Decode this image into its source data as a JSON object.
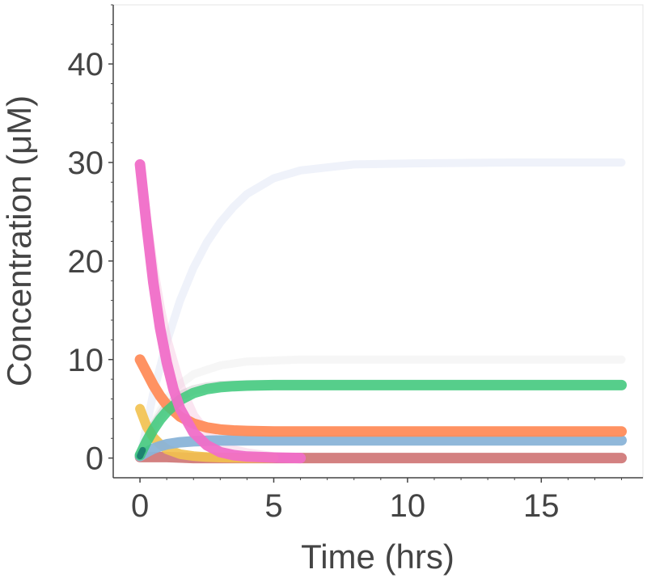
{
  "chart_data": {
    "type": "line",
    "xlabel": "Time (hrs)",
    "ylabel": "Concentration (μM)",
    "xlim": [
      -1,
      18.8
    ],
    "ylim": [
      -2,
      46
    ],
    "x_ticks": [
      0,
      5,
      10,
      15
    ],
    "y_ticks": [
      0,
      10,
      20,
      30,
      40
    ],
    "grid": false,
    "series": [
      {
        "color": "#edf1fa",
        "width": 10,
        "opacity": 0.9,
        "x": [
          0,
          0.5,
          1,
          1.5,
          2,
          2.5,
          3,
          3.5,
          4,
          5,
          6,
          8,
          10,
          14,
          18
        ],
        "y": [
          0,
          6.6,
          11.8,
          16.0,
          19.3,
          21.9,
          23.9,
          25.5,
          26.8,
          28.4,
          29.2,
          29.8,
          29.9,
          30.0,
          30.0
        ]
      },
      {
        "color": "#f5f5f5",
        "width": 10,
        "opacity": 0.9,
        "x": [
          0,
          0.5,
          1,
          1.5,
          2,
          3,
          4,
          6,
          10,
          18
        ],
        "y": [
          0,
          3.5,
          6.0,
          7.5,
          8.5,
          9.4,
          9.8,
          10.0,
          10.0,
          10.0
        ]
      },
      {
        "color": "#f7c6e0",
        "width": 12,
        "opacity": 0.45,
        "x": [
          0,
          0.25,
          0.5,
          0.75,
          1,
          1.5,
          2,
          2.5,
          3,
          3.5,
          4,
          5
        ],
        "y": [
          29.5,
          24.0,
          19.2,
          15.2,
          12.0,
          7.3,
          4.3,
          2.5,
          1.5,
          0.8,
          0.5,
          0.1
        ]
      },
      {
        "color": "#b9b9b9",
        "width": 12,
        "opacity": 0.35,
        "x": [
          0,
          0.5,
          1,
          1.5,
          2,
          2.5,
          3,
          4,
          5,
          8,
          12,
          18
        ],
        "y": [
          0.3,
          3.2,
          5.2,
          6.3,
          6.9,
          7.2,
          7.35,
          7.4,
          7.4,
          7.4,
          7.4,
          7.4
        ]
      },
      {
        "color": "#d17a7a",
        "width": 13,
        "opacity": 0.95,
        "x": [
          0,
          0.5,
          1,
          1.5,
          2,
          2.5,
          3,
          4,
          5,
          8,
          12,
          18
        ],
        "y": [
          0.1,
          0.1,
          0.1,
          0.05,
          0.0,
          0.0,
          0.0,
          0.0,
          0.0,
          0.0,
          0.0,
          0.0
        ]
      },
      {
        "color": "#f2c14e",
        "width": 12,
        "opacity": 0.9,
        "x": [
          0,
          0.25,
          0.5,
          0.75,
          1,
          1.5,
          2,
          2.5,
          3,
          4,
          5
        ],
        "y": [
          5.0,
          3.2,
          2.1,
          1.4,
          0.9,
          0.4,
          0.2,
          0.1,
          0.05,
          0.0,
          0.0
        ]
      },
      {
        "color": "#8ab4d8",
        "width": 13,
        "opacity": 0.95,
        "x": [
          0,
          0.25,
          0.5,
          0.75,
          1,
          1.5,
          2,
          2.5,
          3,
          4,
          5,
          8,
          12,
          18
        ],
        "y": [
          0.2,
          0.6,
          0.95,
          1.2,
          1.4,
          1.6,
          1.7,
          1.75,
          1.78,
          1.8,
          1.8,
          1.8,
          1.8,
          1.8
        ]
      },
      {
        "color": "#ff8c5a",
        "width": 13,
        "opacity": 0.95,
        "x": [
          0,
          0.25,
          0.5,
          0.75,
          1,
          1.5,
          2,
          2.5,
          3,
          3.5,
          4,
          5,
          6,
          8,
          12,
          18
        ],
        "y": [
          10.0,
          8.7,
          7.4,
          6.3,
          5.4,
          4.2,
          3.5,
          3.1,
          2.9,
          2.8,
          2.75,
          2.7,
          2.7,
          2.7,
          2.7,
          2.7
        ]
      },
      {
        "color": "#3cc97a",
        "width": 13,
        "opacity": 0.85,
        "x": [
          0,
          0.25,
          0.5,
          0.75,
          1,
          1.5,
          2,
          2.5,
          3,
          3.5,
          4,
          5,
          6,
          8,
          12,
          18
        ],
        "y": [
          0.3,
          1.7,
          2.9,
          3.9,
          4.7,
          5.9,
          6.6,
          7.0,
          7.2,
          7.3,
          7.35,
          7.4,
          7.4,
          7.4,
          7.4,
          7.4
        ]
      },
      {
        "color": "#f06ec8",
        "width": 13,
        "opacity": 0.95,
        "x": [
          0,
          0.25,
          0.5,
          0.75,
          1,
          1.25,
          1.5,
          2,
          2.5,
          3,
          3.5,
          4,
          5,
          6
        ],
        "y": [
          29.8,
          23.5,
          17.8,
          13.2,
          9.7,
          7.0,
          5.0,
          2.6,
          1.3,
          0.6,
          0.3,
          0.15,
          0.05,
          0.0
        ]
      },
      {
        "color": "#1a7a6e",
        "width": 8,
        "opacity": 0.9,
        "x": [
          0,
          0.05,
          0.1
        ],
        "y": [
          0.2,
          0.5,
          0.8
        ]
      }
    ]
  }
}
